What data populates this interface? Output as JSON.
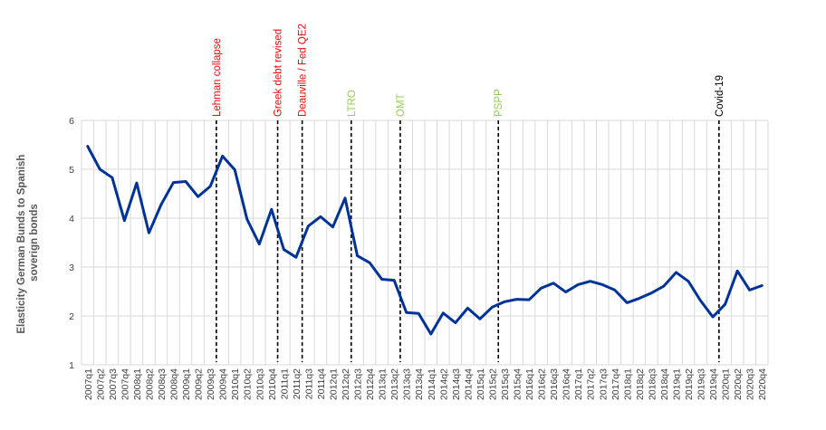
{
  "chart_data": {
    "type": "line",
    "title": "",
    "xlabel": "",
    "ylabel_lines": [
      "Elasticity German Bunds to Spanish",
      "soverign bonds"
    ],
    "ylim": [
      1,
      6
    ],
    "yticks": [
      1,
      2,
      3,
      4,
      5,
      6
    ],
    "grid": true,
    "line_color": "#003399",
    "categories": [
      "2007q1",
      "2007q2",
      "2007q3",
      "2007q4",
      "2008q1",
      "2008q2",
      "2008q3",
      "2008q4",
      "2009q1",
      "2009q2",
      "2009q3",
      "2009q4",
      "2010q1",
      "2010q2",
      "2010q3",
      "2010q4",
      "2011q1",
      "2011q2",
      "2011q3",
      "2011q4",
      "2012q1",
      "2012q2",
      "2012q3",
      "2012q4",
      "2013q1",
      "2013q2",
      "2013q3",
      "2013q4",
      "2014q1",
      "2014q2",
      "2014q3",
      "2014q4",
      "2015q1",
      "2015q2",
      "2015q3",
      "2015q4",
      "2016q1",
      "2016q2",
      "2016q3",
      "2016q4",
      "2017q1",
      "2017q2",
      "2017q3",
      "2017q4",
      "2018q1",
      "2018q2",
      "2018q3",
      "2018q4",
      "2019q1",
      "2019q2",
      "2019q3",
      "2019q4",
      "2020q1",
      "2020q2",
      "2020q3",
      "2020q4"
    ],
    "series": [
      {
        "values": [
          5.47,
          5.0,
          4.83,
          3.95,
          4.72,
          3.7,
          4.28,
          4.73,
          4.75,
          4.44,
          4.65,
          5.27,
          4.99,
          3.98,
          3.47,
          4.18,
          3.36,
          3.2,
          3.84,
          4.03,
          3.82,
          4.41,
          3.23,
          3.09,
          2.75,
          2.73,
          2.07,
          2.05,
          1.63,
          2.06,
          1.86,
          2.16,
          1.94,
          2.18,
          2.29,
          2.34,
          2.33,
          2.57,
          2.67,
          2.49,
          2.64,
          2.71,
          2.64,
          2.53,
          2.27,
          2.36,
          2.47,
          2.61,
          2.89,
          2.71,
          2.31,
          1.98,
          2.24,
          2.92,
          2.53,
          2.62
        ]
      }
    ],
    "annotations": [
      {
        "label": "Lehman collapse",
        "at": "2009q3",
        "color": "#ff0000"
      },
      {
        "label": "Greek debt revised",
        "at": "2010q4",
        "color": "#ff0000"
      },
      {
        "label": "Deauville / Fed QE2",
        "at": "2011q2",
        "color": "#ff0000"
      },
      {
        "label": "LTRO",
        "at": "2012q2",
        "color": "#92d050"
      },
      {
        "label": "OMT",
        "at": "2013q2",
        "color": "#92d050"
      },
      {
        "label": "PSPP",
        "at": "2015q2",
        "color": "#92d050"
      },
      {
        "label": "Covid-19",
        "at": "2019q4",
        "color": "#000000"
      }
    ]
  }
}
